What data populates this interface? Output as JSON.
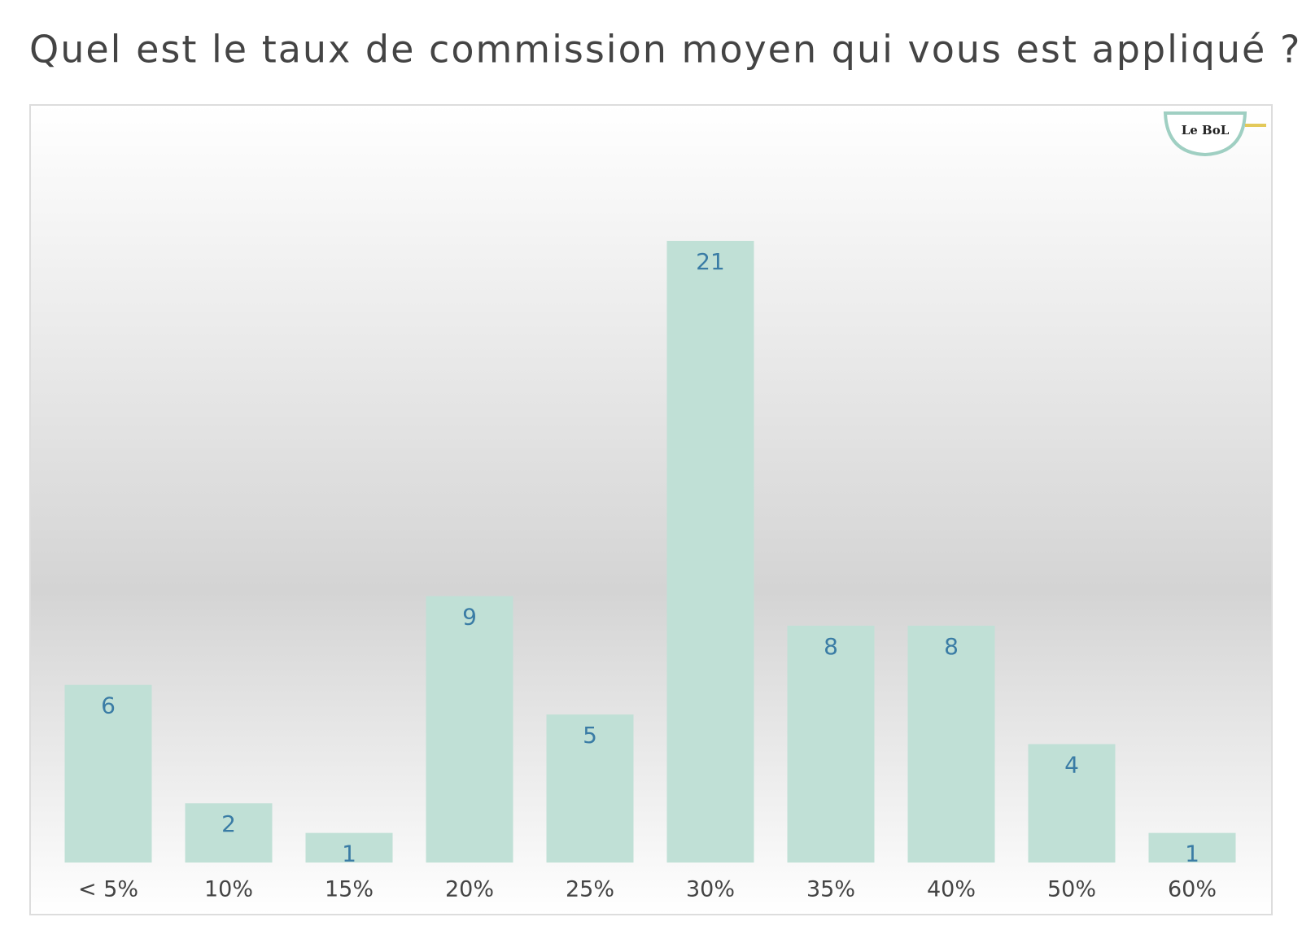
{
  "chart_data": {
    "type": "bar",
    "title": "Quel est le taux de commission moyen qui vous est appliqué ?",
    "categories": [
      "< 5%",
      "10%",
      "15%",
      "20%",
      "25%",
      "30%",
      "35%",
      "40%",
      "50%",
      "60%"
    ],
    "values": [
      6,
      2,
      1,
      9,
      5,
      21,
      8,
      8,
      4,
      1
    ],
    "color": "#c0e0d6",
    "label_color": "#3a7ca5"
  },
  "logo": "Le BoL"
}
